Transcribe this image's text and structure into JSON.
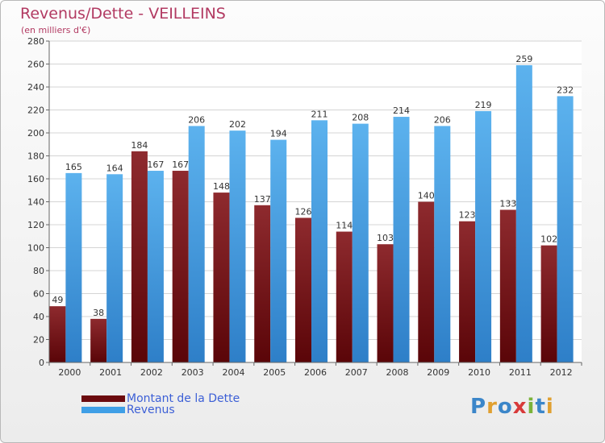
{
  "header": {
    "title": "Revenus/Dette - VEILLEINS",
    "subtitle": "(en milliers d'€)"
  },
  "legend": {
    "items": [
      {
        "label": "Montant de la Dette",
        "color": "#6b0a0e"
      },
      {
        "label": "Revenus",
        "color": "#3f9fe6"
      }
    ]
  },
  "logo": {
    "text": "Proxiti"
  },
  "colors": {
    "debt": "#7a1418",
    "revenue": "#4aa3e3",
    "title": "#b23a62"
  },
  "chart_data": {
    "type": "bar",
    "title": "Revenus/Dette - VEILLEINS",
    "subtitle": "(en milliers d'€)",
    "categories": [
      "2000",
      "2001",
      "2002",
      "2003",
      "2004",
      "2005",
      "2006",
      "2007",
      "2008",
      "2009",
      "2010",
      "2011",
      "2012"
    ],
    "series": [
      {
        "name": "Montant de la Dette",
        "values": [
          49,
          38,
          184,
          167,
          148,
          137,
          126,
          114,
          103,
          140,
          123,
          133,
          102
        ]
      },
      {
        "name": "Revenus",
        "values": [
          165,
          164,
          167,
          206,
          202,
          194,
          211,
          208,
          214,
          206,
          219,
          259,
          232
        ]
      }
    ],
    "ylim": [
      0,
      280
    ],
    "yticks": [
      0,
      20,
      40,
      60,
      80,
      100,
      120,
      140,
      160,
      180,
      200,
      220,
      240,
      260,
      280
    ],
    "grid": true,
    "legend_position": "bottom-left"
  }
}
